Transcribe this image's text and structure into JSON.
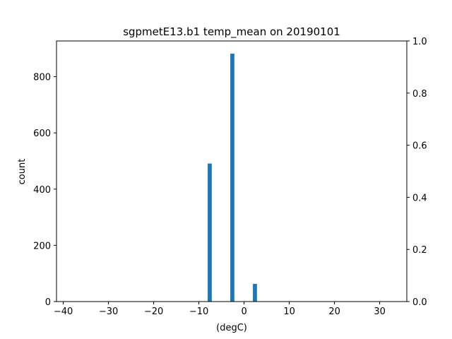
{
  "chart_data": {
    "type": "bar",
    "title": "sgpmetE13.b1 temp_mean on 20190101",
    "xlabel": "(degC)",
    "ylabel": "count",
    "xlim": [
      -41.5,
      36
    ],
    "ylim": [
      0,
      927
    ],
    "y2lim": [
      0,
      1.0
    ],
    "x_ticks": [
      -40,
      -30,
      -20,
      -10,
      0,
      10,
      20,
      30
    ],
    "y_ticks": [
      0,
      200,
      400,
      600,
      800
    ],
    "y2_ticks": [
      0.0,
      0.2,
      0.4,
      0.6,
      0.8,
      1.0
    ],
    "x_tick_labels": [
      "−40",
      "−30",
      "−20",
      "−10",
      "0",
      "10",
      "20",
      "30"
    ],
    "y_tick_labels": [
      "0",
      "200",
      "400",
      "600",
      "800"
    ],
    "y2_tick_labels": [
      "0.0",
      "0.2",
      "0.4",
      "0.6",
      "0.8",
      "1.0"
    ],
    "bar_width": 0.9,
    "bars": [
      {
        "x": -7.6,
        "value": 491
      },
      {
        "x": -2.6,
        "value": 882
      },
      {
        "x": 2.4,
        "value": 63
      }
    ],
    "grid": false,
    "colors": {
      "bar": "#1f77b4"
    }
  }
}
